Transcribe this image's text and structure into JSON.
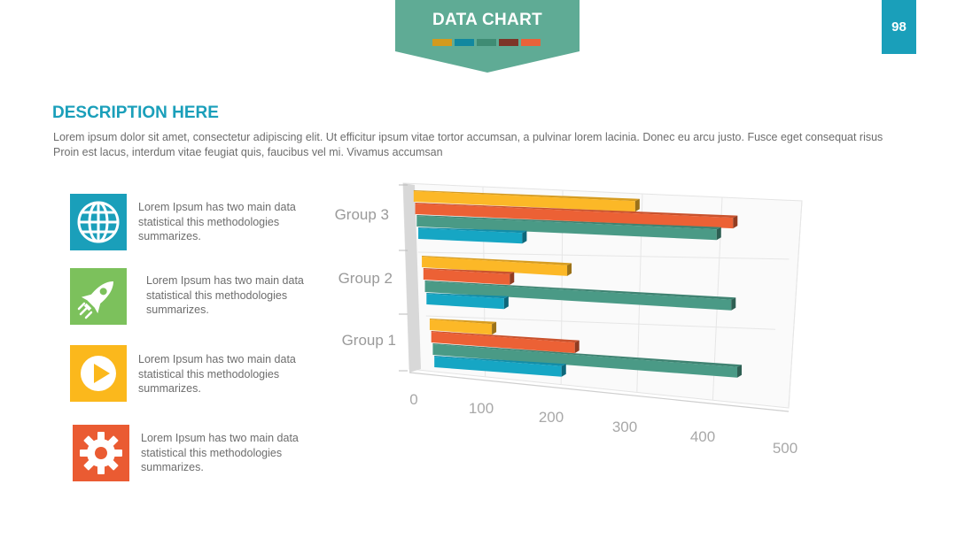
{
  "header": {
    "title": "DATA CHART",
    "swatch_colors": [
      "#d29a1e",
      "#12889f",
      "#3f8c74",
      "#7d3528",
      "#e8623a"
    ],
    "banner_color": "#5fab95"
  },
  "page_number": "98",
  "section": {
    "heading": "DESCRIPTION HERE",
    "description": "Lorem ipsum dolor sit amet, consectetur adipiscing elit. Ut efficitur ipsum vitae tortor accumsan, a pulvinar lorem lacinia. Donec eu arcu justo. Fusce eget consequat risus Proin est lacus, interdum vitae feugiat quis, faucibus vel mi.  Vivamus accumsan"
  },
  "items": [
    {
      "icon": "globe-icon",
      "color": "#1a9fba",
      "text": "Lorem Ipsum has two main data statistical this methodologies summarizes."
    },
    {
      "icon": "rocket-icon",
      "color": "#7cc15c",
      "text": "Lorem Ipsum has two main data statistical this methodologies summarizes."
    },
    {
      "icon": "play-icon",
      "color": "#fbb81c",
      "text": "Lorem Ipsum has two main data statistical this methodologies summarizes."
    },
    {
      "icon": "gear-icon",
      "color": "#ea5b32",
      "text": "Lorem Ipsum has two main data statistical this methodologies summarizes."
    }
  ],
  "chart_data": {
    "type": "bar",
    "orientation": "horizontal",
    "categories": [
      "Group 1",
      "Group 2",
      "Group 3"
    ],
    "series": [
      {
        "color": "#16a6c4",
        "values": [
          190,
          110,
          140
        ]
      },
      {
        "color": "#4a9a86",
        "values": [
          450,
          430,
          400
        ]
      },
      {
        "color": "#ec6135",
        "values": [
          210,
          120,
          420
        ]
      },
      {
        "color": "#fcb827",
        "values": [
          90,
          200,
          290
        ]
      }
    ],
    "x_ticks": [
      "0",
      "100",
      "200",
      "300",
      "400",
      "500"
    ],
    "xlim": [
      0,
      500
    ],
    "grid": true,
    "legend": false
  }
}
